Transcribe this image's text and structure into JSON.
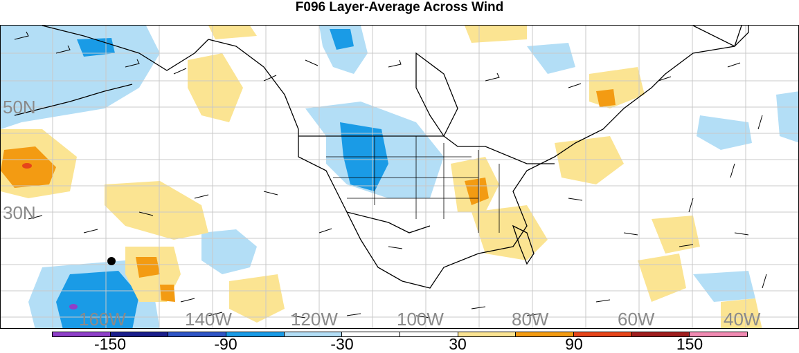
{
  "title": "F096 Layer-Average Across Wind",
  "map": {
    "latitude_labels": [
      "50N",
      "30N"
    ],
    "longitude_labels": [
      "160W",
      "140W",
      "120W",
      "100W",
      "80W",
      "60W",
      "40W"
    ],
    "grid": true,
    "colors": {
      "land_outline": "#000000",
      "grid_line": "#c8c8c8",
      "label_text": "#8a8a8a"
    }
  },
  "colorbar": {
    "labels": [
      "-150",
      "-90",
      "-30",
      "30",
      "90",
      "150"
    ],
    "segments": [
      {
        "range": "< -150",
        "color": "#8e3fc8"
      },
      {
        "range": "-150 to -120",
        "color": "#1b1f8c"
      },
      {
        "range": "-120 to -90",
        "color": "#2f55c6"
      },
      {
        "range": "-90 to -60",
        "color": "#1a9be6"
      },
      {
        "range": "-60 to -30",
        "color": "#b3def6"
      },
      {
        "range": "-30 to 0",
        "color": "#ffffff"
      },
      {
        "range": "0 to 30",
        "color": "#ffffff"
      },
      {
        "range": "30 to 60",
        "color": "#fbe492"
      },
      {
        "range": "60 to 90",
        "color": "#f39b12"
      },
      {
        "range": "90 to 120",
        "color": "#e6451a"
      },
      {
        "range": "120 to 150",
        "color": "#a01e1e"
      },
      {
        "range": "> 150",
        "color": "#f08ab2"
      }
    ]
  }
}
